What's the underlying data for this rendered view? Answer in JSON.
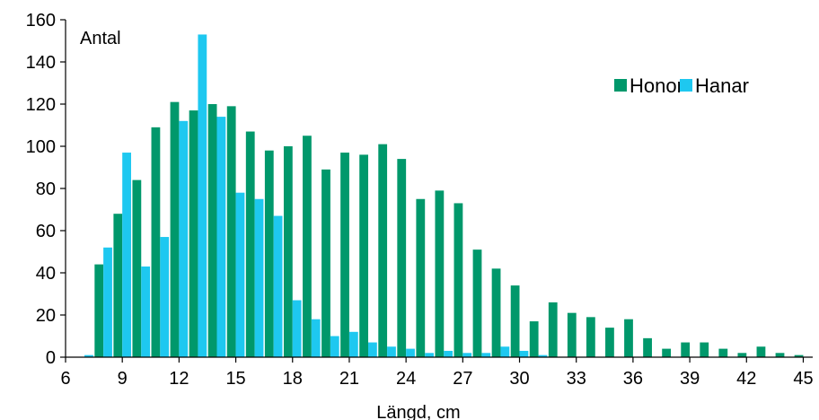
{
  "chart_data": {
    "type": "bar",
    "ylabel": "Antal",
    "xlabel": "Längd, cm",
    "ylim": [
      0,
      160
    ],
    "yticks": [
      0,
      20,
      40,
      60,
      80,
      100,
      120,
      140,
      160
    ],
    "xlim": [
      6,
      45.5
    ],
    "xticks": [
      6,
      9,
      12,
      15,
      18,
      21,
      24,
      27,
      30,
      33,
      36,
      39,
      42,
      45
    ],
    "grid": false,
    "legend_position": "top-right",
    "categories": [
      7,
      8,
      9,
      10,
      11,
      12,
      13,
      14,
      15,
      16,
      17,
      18,
      19,
      20,
      21,
      22,
      23,
      24,
      25,
      26,
      27,
      28,
      29,
      30,
      31,
      32,
      33,
      34,
      35,
      36,
      37,
      38,
      39,
      40,
      41,
      42,
      43,
      44,
      45
    ],
    "series": [
      {
        "name": "Honor",
        "color": "#00986B",
        "values": [
          0,
          44,
          68,
          84,
          109,
          121,
          117,
          120,
          119,
          107,
          98,
          100,
          105,
          89,
          97,
          96,
          101,
          94,
          75,
          79,
          73,
          51,
          42,
          34,
          17,
          26,
          21,
          19,
          14,
          18,
          9,
          4,
          7,
          7,
          4,
          2,
          5,
          2,
          1
        ]
      },
      {
        "name": "Hanar",
        "color": "#1EC8F0",
        "values": [
          1,
          52,
          97,
          43,
          57,
          112,
          153,
          114,
          78,
          75,
          67,
          27,
          18,
          10,
          12,
          7,
          5,
          4,
          2,
          3,
          2,
          2,
          5,
          3,
          1,
          0,
          0,
          0,
          0,
          0,
          0,
          0,
          0,
          0,
          0,
          0,
          0,
          0,
          0
        ]
      }
    ]
  }
}
